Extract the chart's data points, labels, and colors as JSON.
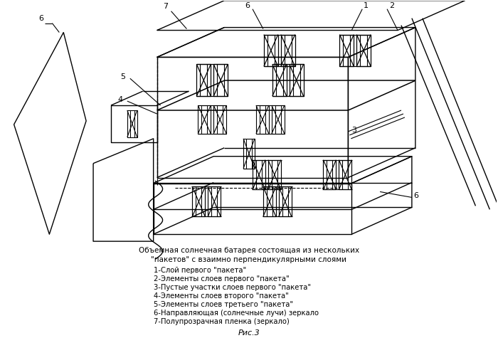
{
  "title_line1": "Объемная солнечная батарея состоящая из нескольких",
  "title_line2": "\"пакетов\" с взаимно перпендикулярными слоями",
  "legend": [
    "1-Слой первого \"пакета\"",
    "2-Элементы слоев первого \"пакета\"",
    "3-Пустые участки слоев первого \"пакета\"",
    "4-Элементы слоев второго \"пакета\"",
    "5-Элементы слоев третьего \"пакета\"",
    "6-Направляющая (солнечные лучи) зеркало",
    "7-Полупрозрачная пленка (зеркало)"
  ],
  "fig_label": "Рис.3",
  "bg_color": "#ffffff",
  "line_color": "#000000"
}
